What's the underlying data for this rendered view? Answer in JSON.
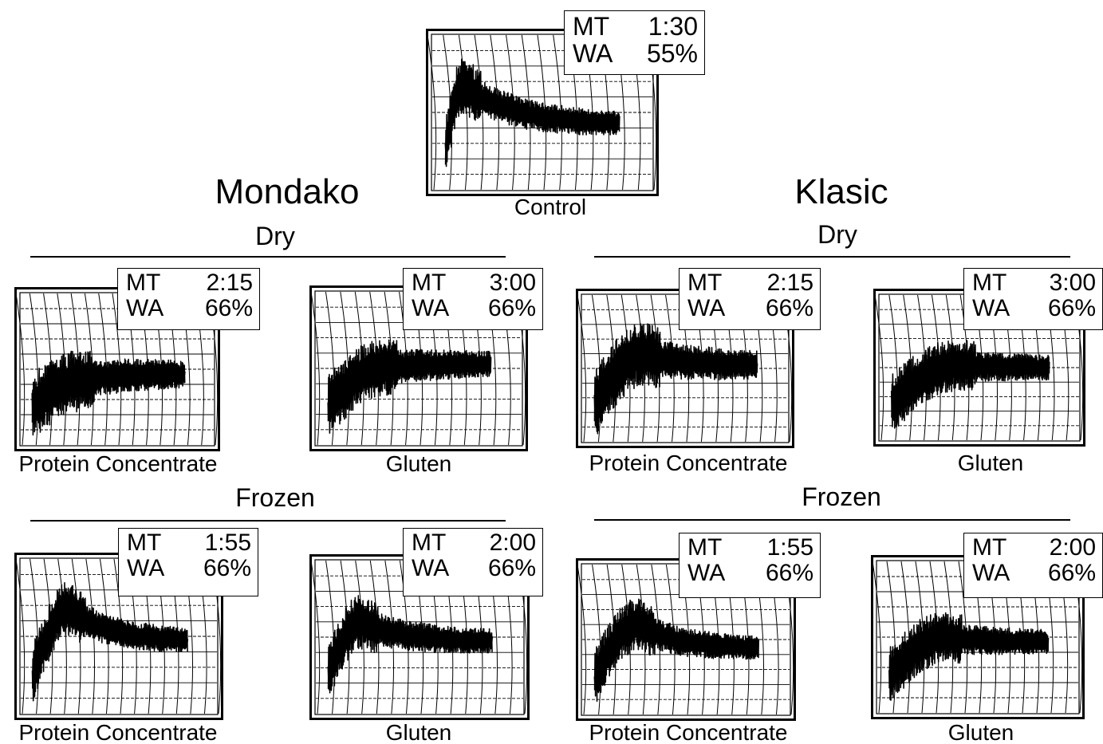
{
  "control": {
    "caption": "Control",
    "mt_label": "MT",
    "mt": "1:30",
    "wa_label": "WA",
    "wa": "55%"
  },
  "groups": [
    {
      "title": "Mondako",
      "dry_label": "Dry",
      "frozen_label": "Frozen",
      "dry": [
        {
          "caption": "Protein Concentrate",
          "mt_label": "MT",
          "mt": "2:15",
          "wa_label": "WA",
          "wa": "66%"
        },
        {
          "caption": "Gluten",
          "mt_label": "MT",
          "mt": "3:00",
          "wa_label": "WA",
          "wa": "66%"
        }
      ],
      "frozen": [
        {
          "caption": "Protein Concentrate",
          "mt_label": "MT",
          "mt": "1:55",
          "wa_label": "WA",
          "wa": "66%"
        },
        {
          "caption": "Gluten",
          "mt_label": "MT",
          "mt": "2:00",
          "wa_label": "WA",
          "wa": "66%"
        }
      ]
    },
    {
      "title": "Klasic",
      "dry_label": "Dry",
      "frozen_label": "Frozen",
      "dry": [
        {
          "caption": "Protein Concentrate",
          "mt_label": "MT",
          "mt": "2:15",
          "wa_label": "WA",
          "wa": "66%"
        },
        {
          "caption": "Gluten",
          "mt_label": "MT",
          "mt": "3:00",
          "wa_label": "WA",
          "wa": "66%"
        }
      ],
      "frozen": [
        {
          "caption": "Protein Concentrate",
          "mt_label": "MT",
          "mt": "1:55",
          "wa_label": "WA",
          "wa": "66%"
        },
        {
          "caption": "Gluten",
          "mt_label": "MT",
          "mt": "2:00",
          "wa_label": "WA",
          "wa": "66%"
        }
      ]
    }
  ]
}
